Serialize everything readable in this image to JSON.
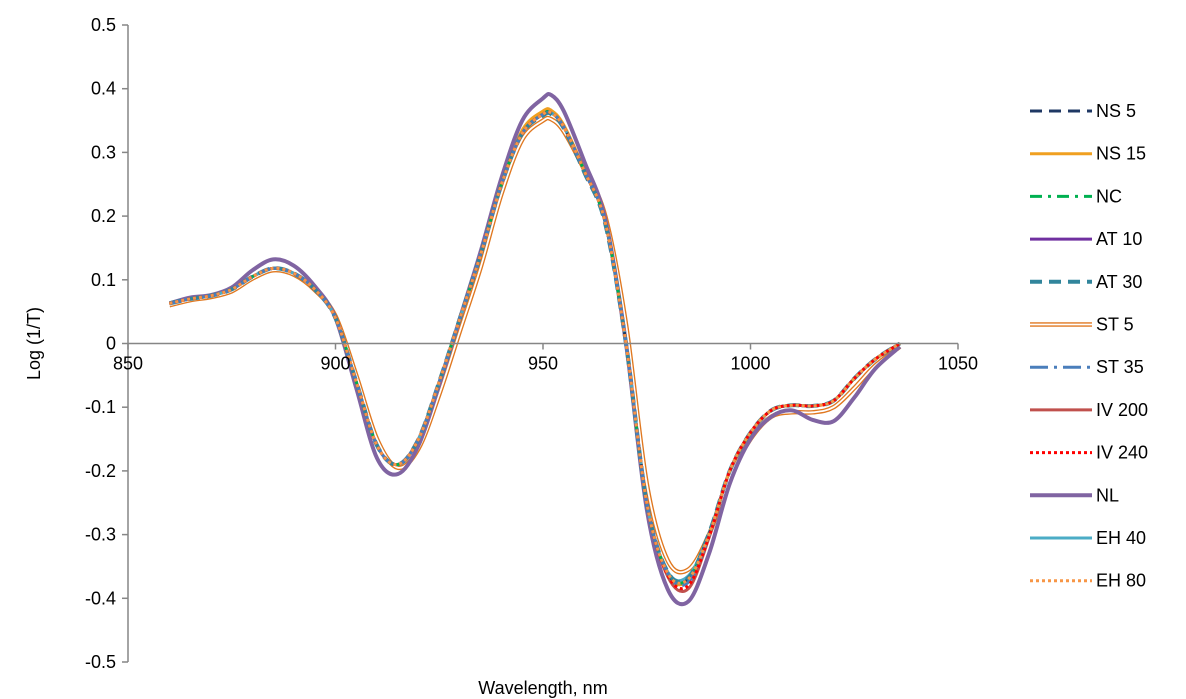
{
  "chart_data": {
    "type": "line",
    "title": "",
    "xlabel": "Wavelength, nm",
    "ylabel": "Log (1/T)",
    "xlim": [
      850,
      1050
    ],
    "ylim": [
      -0.5,
      0.5
    ],
    "x_ticks": [
      850,
      900,
      950,
      1000,
      1050
    ],
    "x_tick_labels": [
      "850",
      "900",
      "950",
      "1000",
      "1050"
    ],
    "y_ticks": [
      0.5,
      0.4,
      0.3,
      0.2,
      0.1,
      0,
      -0.1,
      -0.2,
      -0.3,
      -0.4,
      -0.5
    ],
    "y_tick_labels": [
      "0.5",
      "0.4",
      "0.3",
      "0.2",
      "0.1",
      "0",
      "-0.1",
      "-0.2",
      "-0.3",
      "-0.4",
      "-0.5"
    ],
    "grid": false,
    "legend_position": "right",
    "x": [
      860,
      865,
      870,
      875,
      880,
      885,
      890,
      895,
      900,
      905,
      910,
      915,
      920,
      925,
      930,
      935,
      940,
      945,
      950,
      952,
      955,
      960,
      965,
      970,
      975,
      980,
      985,
      990,
      995,
      1000,
      1005,
      1010,
      1015,
      1020,
      1025,
      1030,
      1036
    ],
    "series": [
      {
        "name": "NS 5",
        "color": "#1f3864",
        "dash": "dash",
        "width": 3,
        "values": [
          0.063,
          0.07,
          0.075,
          0.085,
          0.105,
          0.118,
          0.11,
          0.085,
          0.04,
          -0.06,
          -0.16,
          -0.19,
          -0.15,
          -0.06,
          0.04,
          0.14,
          0.25,
          0.33,
          0.36,
          0.362,
          0.34,
          0.27,
          0.19,
          0.0,
          -0.25,
          -0.36,
          -0.37,
          -0.3,
          -0.2,
          -0.14,
          -0.105,
          -0.097,
          -0.098,
          -0.09,
          -0.055,
          -0.025,
          0.0
        ]
      },
      {
        "name": "NS 15",
        "color": "#f0a020",
        "dash": "solid",
        "width": 3,
        "values": [
          0.063,
          0.07,
          0.075,
          0.085,
          0.105,
          0.118,
          0.11,
          0.085,
          0.04,
          -0.06,
          -0.16,
          -0.19,
          -0.15,
          -0.06,
          0.04,
          0.14,
          0.25,
          0.335,
          0.365,
          0.366,
          0.343,
          0.272,
          0.19,
          0.0,
          -0.25,
          -0.362,
          -0.372,
          -0.3,
          -0.2,
          -0.14,
          -0.105,
          -0.097,
          -0.098,
          -0.09,
          -0.055,
          -0.025,
          0.0
        ]
      },
      {
        "name": "NC",
        "color": "#00b050",
        "dash": "dashdot",
        "width": 3,
        "values": [
          0.063,
          0.07,
          0.075,
          0.085,
          0.105,
          0.118,
          0.11,
          0.085,
          0.04,
          -0.06,
          -0.16,
          -0.19,
          -0.15,
          -0.06,
          0.04,
          0.14,
          0.25,
          0.33,
          0.36,
          0.362,
          0.34,
          0.27,
          0.19,
          0.0,
          -0.25,
          -0.36,
          -0.37,
          -0.3,
          -0.2,
          -0.14,
          -0.105,
          -0.097,
          -0.098,
          -0.09,
          -0.055,
          -0.025,
          0.0
        ]
      },
      {
        "name": "AT 10",
        "color": "#7030a0",
        "dash": "solid",
        "width": 3,
        "values": [
          0.063,
          0.07,
          0.075,
          0.085,
          0.105,
          0.118,
          0.11,
          0.085,
          0.04,
          -0.06,
          -0.16,
          -0.19,
          -0.15,
          -0.06,
          0.04,
          0.14,
          0.25,
          0.33,
          0.36,
          0.362,
          0.34,
          0.27,
          0.19,
          0.0,
          -0.25,
          -0.36,
          -0.37,
          -0.3,
          -0.2,
          -0.14,
          -0.105,
          -0.097,
          -0.098,
          -0.09,
          -0.055,
          -0.025,
          0.0
        ]
      },
      {
        "name": "AT 30",
        "color": "#31859c",
        "dash": "dash",
        "width": 4,
        "values": [
          0.063,
          0.07,
          0.075,
          0.085,
          0.105,
          0.118,
          0.11,
          0.085,
          0.04,
          -0.06,
          -0.16,
          -0.19,
          -0.15,
          -0.06,
          0.04,
          0.14,
          0.25,
          0.33,
          0.358,
          0.36,
          0.338,
          0.268,
          0.188,
          0.0,
          -0.25,
          -0.358,
          -0.368,
          -0.298,
          -0.2,
          -0.14,
          -0.105,
          -0.097,
          -0.098,
          -0.09,
          -0.055,
          -0.025,
          0.0
        ]
      },
      {
        "name": "ST 5",
        "color": "#e07820",
        "dash": "double",
        "width": 1.5,
        "values": [
          0.06,
          0.068,
          0.073,
          0.082,
          0.102,
          0.115,
          0.108,
          0.084,
          0.043,
          -0.05,
          -0.15,
          -0.195,
          -0.165,
          -0.08,
          0.02,
          0.12,
          0.235,
          0.32,
          0.35,
          0.352,
          0.333,
          0.272,
          0.2,
          0.03,
          -0.22,
          -0.34,
          -0.355,
          -0.3,
          -0.21,
          -0.15,
          -0.115,
          -0.108,
          -0.108,
          -0.1,
          -0.07,
          -0.035,
          -0.005
        ]
      },
      {
        "name": "ST 35",
        "color": "#4a7ebb",
        "dash": "longdashdot",
        "width": 3,
        "values": [
          0.063,
          0.07,
          0.075,
          0.085,
          0.105,
          0.118,
          0.11,
          0.085,
          0.04,
          -0.06,
          -0.16,
          -0.19,
          -0.15,
          -0.06,
          0.04,
          0.14,
          0.25,
          0.33,
          0.36,
          0.362,
          0.34,
          0.27,
          0.19,
          0.0,
          -0.25,
          -0.36,
          -0.375,
          -0.302,
          -0.2,
          -0.14,
          -0.105,
          -0.097,
          -0.098,
          -0.09,
          -0.055,
          -0.025,
          0.0
        ]
      },
      {
        "name": "IV 200",
        "color": "#c0504d",
        "dash": "solid",
        "width": 3,
        "values": [
          0.063,
          0.07,
          0.075,
          0.085,
          0.105,
          0.118,
          0.11,
          0.085,
          0.04,
          -0.06,
          -0.16,
          -0.19,
          -0.15,
          -0.06,
          0.04,
          0.14,
          0.25,
          0.33,
          0.36,
          0.362,
          0.34,
          0.27,
          0.19,
          0.0,
          -0.25,
          -0.365,
          -0.385,
          -0.305,
          -0.2,
          -0.14,
          -0.105,
          -0.097,
          -0.098,
          -0.09,
          -0.055,
          -0.025,
          0.0
        ]
      },
      {
        "name": "IV 240",
        "color": "#ff0000",
        "dash": "dot",
        "width": 3,
        "values": [
          0.063,
          0.07,
          0.075,
          0.085,
          0.105,
          0.118,
          0.11,
          0.085,
          0.04,
          -0.06,
          -0.16,
          -0.19,
          -0.15,
          -0.06,
          0.04,
          0.14,
          0.25,
          0.33,
          0.36,
          0.362,
          0.34,
          0.27,
          0.19,
          0.0,
          -0.25,
          -0.363,
          -0.38,
          -0.303,
          -0.2,
          -0.14,
          -0.105,
          -0.097,
          -0.098,
          -0.09,
          -0.055,
          -0.025,
          0.0
        ]
      },
      {
        "name": "NL",
        "color": "#8064a2",
        "dash": "solid",
        "width": 4,
        "values": [
          0.063,
          0.072,
          0.076,
          0.088,
          0.115,
          0.132,
          0.122,
          0.09,
          0.04,
          -0.07,
          -0.18,
          -0.205,
          -0.16,
          -0.065,
          0.04,
          0.145,
          0.26,
          0.35,
          0.385,
          0.39,
          0.365,
          0.285,
          0.195,
          0.0,
          -0.26,
          -0.385,
          -0.405,
          -0.33,
          -0.22,
          -0.15,
          -0.115,
          -0.105,
          -0.12,
          -0.122,
          -0.085,
          -0.04,
          -0.005
        ]
      },
      {
        "name": "EH 40",
        "color": "#4bacc6",
        "dash": "solid",
        "width": 3,
        "values": [
          0.063,
          0.07,
          0.075,
          0.085,
          0.105,
          0.118,
          0.11,
          0.085,
          0.04,
          -0.06,
          -0.16,
          -0.19,
          -0.15,
          -0.06,
          0.04,
          0.14,
          0.25,
          0.33,
          0.36,
          0.362,
          0.34,
          0.27,
          0.19,
          0.0,
          -0.25,
          -0.358,
          -0.365,
          -0.298,
          -0.2,
          -0.14,
          -0.105,
          -0.097,
          -0.098,
          -0.09,
          -0.055,
          -0.025,
          0.0
        ]
      },
      {
        "name": "EH 80",
        "color": "#f79646",
        "dash": "dot",
        "width": 3,
        "values": [
          0.063,
          0.07,
          0.075,
          0.085,
          0.105,
          0.118,
          0.11,
          0.085,
          0.04,
          -0.06,
          -0.16,
          -0.19,
          -0.15,
          -0.06,
          0.04,
          0.14,
          0.25,
          0.33,
          0.36,
          0.362,
          0.34,
          0.27,
          0.19,
          0.0,
          -0.25,
          -0.36,
          -0.37,
          -0.3,
          -0.2,
          -0.14,
          -0.105,
          -0.097,
          -0.098,
          -0.09,
          -0.055,
          -0.025,
          0.0
        ]
      }
    ]
  }
}
